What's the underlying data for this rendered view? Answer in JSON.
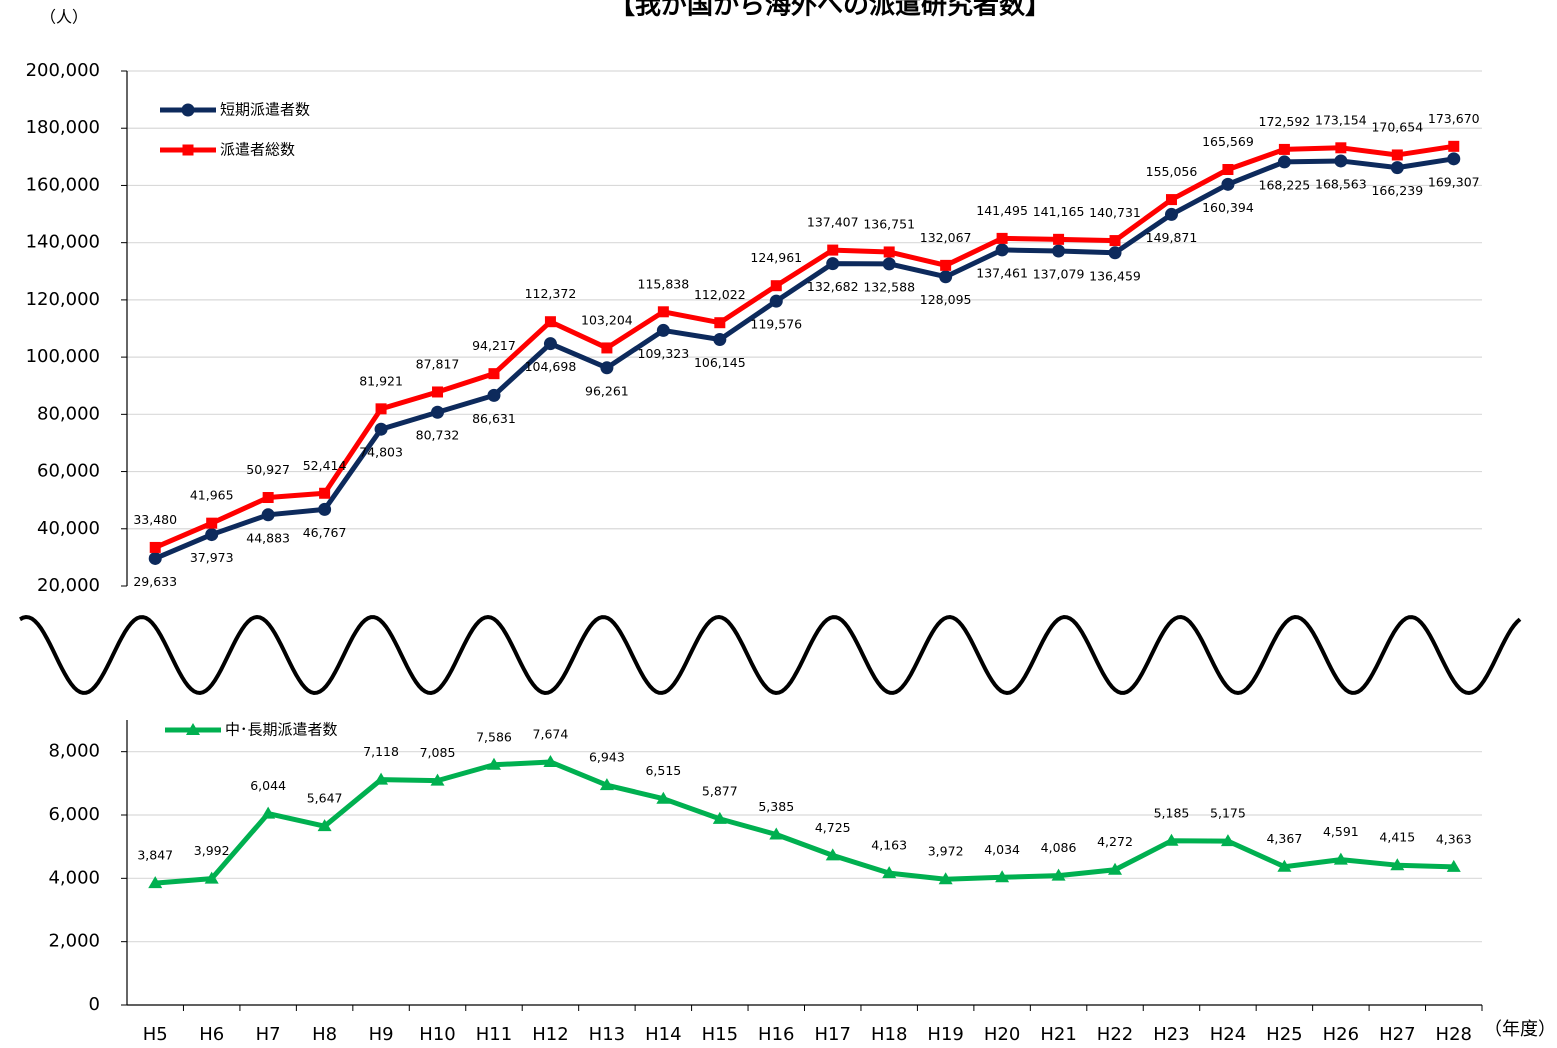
{
  "chart_data": [
    {
      "type": "line",
      "title": "【我が国から海外への派遣研究者数】",
      "y_unit": "（人）",
      "ylim": [
        20000,
        200000
      ],
      "yticks": [
        {
          "value": 20000,
          "label": "20,000"
        },
        {
          "value": 40000,
          "label": "40,000"
        },
        {
          "value": 60000,
          "label": "60,000"
        },
        {
          "value": 80000,
          "label": "80,000"
        },
        {
          "value": 100000,
          "label": "100,000"
        },
        {
          "value": 120000,
          "label": "120,000"
        },
        {
          "value": 140000,
          "label": "140,000"
        },
        {
          "value": 160000,
          "label": "160,000"
        },
        {
          "value": 180000,
          "label": "180,000"
        },
        {
          "value": 200000,
          "label": "200,000"
        }
      ],
      "grid": true,
      "series": [
        {
          "name": "短期派遣者数",
          "color": "#0d2a5c",
          "marker": "circle",
          "label_side": "below",
          "values": [
            29633,
            37973,
            44883,
            46767,
            74803,
            80732,
            86631,
            104698,
            96261,
            109323,
            106145,
            119576,
            132682,
            132588,
            128095,
            137461,
            137079,
            136459,
            149871,
            160394,
            168225,
            168563,
            166239,
            169307
          ],
          "value_labels": [
            "29,633",
            "37,973",
            "44,883",
            "46,767",
            "74,803",
            "80,732",
            "86,631",
            "104,698",
            "96,261",
            "109,323",
            "106,145",
            "119,576",
            "132,682",
            "132,588",
            "128,095",
            "137,461",
            "137,079",
            "136,459",
            "149,871",
            "160,394",
            "168,225",
            "168,563",
            "166,239",
            "169,307"
          ]
        },
        {
          "name": "派遣者総数",
          "color": "#ff0000",
          "marker": "square",
          "label_side": "above",
          "values": [
            33480,
            41965,
            50927,
            52414,
            81921,
            87817,
            94217,
            112372,
            103204,
            115838,
            112022,
            124961,
            137407,
            136751,
            132067,
            141495,
            141165,
            140731,
            155056,
            165569,
            172592,
            173154,
            170654,
            173670
          ],
          "value_labels": [
            "33,480",
            "41,965",
            "50,927",
            "52,414",
            "81,921",
            "87,817",
            "94,217",
            "112,372",
            "103,204",
            "115,838",
            "112,022",
            "124,961",
            "137,407",
            "136,751",
            "132,067",
            "141,495",
            "141,165",
            "140,731",
            "155,056",
            "165,569",
            "172,592",
            "173,154",
            "170,654",
            "173,670"
          ]
        }
      ]
    },
    {
      "type": "line",
      "x_unit": "（年度）",
      "categories": [
        "H5",
        "H6",
        "H7",
        "H8",
        "H9",
        "H10",
        "H11",
        "H12",
        "H13",
        "H14",
        "H15",
        "H16",
        "H17",
        "H18",
        "H19",
        "H20",
        "H21",
        "H22",
        "H23",
        "H24",
        "H25",
        "H26",
        "H27",
        "H28"
      ],
      "ylim": [
        0,
        9000
      ],
      "yticks": [
        0,
        {
          "value": 2000,
          "label": "2,000"
        },
        {
          "value": 4000,
          "label": "4,000"
        },
        {
          "value": 6000,
          "label": "6,000"
        },
        {
          "value": 8000,
          "label": "8,000"
        }
      ],
      "grid": true,
      "series": [
        {
          "name": "中･長期派遣者数",
          "color": "#00b050",
          "marker": "triangle",
          "label_side": "above",
          "values": [
            3847,
            3992,
            6044,
            5647,
            7118,
            7085,
            7586,
            7674,
            6943,
            6515,
            5877,
            5385,
            4725,
            4163,
            3972,
            4034,
            4086,
            4272,
            5185,
            5175,
            4367,
            4591,
            4415,
            4363
          ],
          "value_labels": [
            "3,847",
            "3,992",
            "6,044",
            "5,647",
            "7,118",
            "7,085",
            "7,586",
            "7,674",
            "6,943",
            "6,515",
            "5,877",
            "5,385",
            "4,725",
            "4,163",
            "3,972",
            "4,034",
            "4,086",
            "4,272",
            "5,185",
            "5,175",
            "4,367",
            "4,591",
            "4,415",
            "4,363"
          ]
        }
      ]
    }
  ]
}
